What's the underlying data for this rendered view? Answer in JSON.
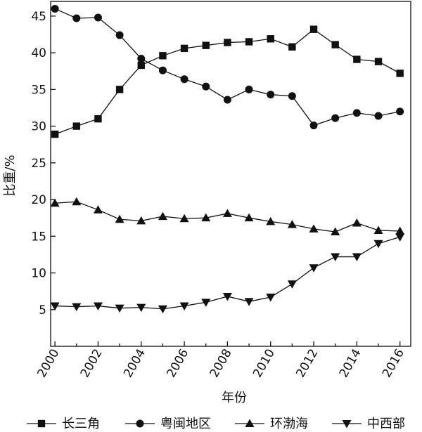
{
  "chart_data": {
    "type": "line",
    "title": "",
    "xlabel": "年份",
    "ylabel": "比重/%",
    "x": [
      2000,
      2001,
      2002,
      2003,
      2004,
      2005,
      2006,
      2007,
      2008,
      2009,
      2010,
      2011,
      2012,
      2013,
      2014,
      2015,
      2016
    ],
    "xticks": [
      2000,
      2002,
      2004,
      2006,
      2008,
      2010,
      2012,
      2014,
      2016
    ],
    "xlim": [
      1999.8,
      2016.5
    ],
    "ylim": [
      0,
      47
    ],
    "yticks": [
      5,
      10,
      15,
      20,
      25,
      30,
      35,
      40,
      45
    ],
    "grid": false,
    "legend_position": "bottom",
    "series": [
      {
        "name": "长三角",
        "marker": "square",
        "values": [
          28.9,
          30.0,
          31.0,
          35.0,
          38.3,
          39.6,
          40.6,
          41.0,
          41.4,
          41.5,
          41.9,
          40.8,
          43.2,
          41.1,
          39.1,
          38.8,
          37.2
        ]
      },
      {
        "name": "粤闽地区",
        "marker": "circle",
        "values": [
          46.0,
          44.7,
          44.8,
          42.4,
          39.2,
          37.6,
          36.4,
          35.4,
          33.6,
          35.0,
          34.3,
          34.1,
          30.1,
          31.1,
          31.8,
          31.4,
          32.0
        ]
      },
      {
        "name": "环渤海",
        "marker": "triangle-up",
        "values": [
          19.5,
          19.7,
          18.6,
          17.3,
          17.1,
          17.7,
          17.4,
          17.5,
          18.1,
          17.5,
          17.0,
          16.6,
          16.0,
          15.6,
          16.8,
          15.8,
          15.7
        ]
      },
      {
        "name": "中西部",
        "marker": "triangle-down",
        "values": [
          5.5,
          5.4,
          5.5,
          5.2,
          5.3,
          5.1,
          5.5,
          6.0,
          6.8,
          6.1,
          6.7,
          8.5,
          10.7,
          12.2,
          12.2,
          14.0,
          14.9
        ]
      }
    ]
  }
}
